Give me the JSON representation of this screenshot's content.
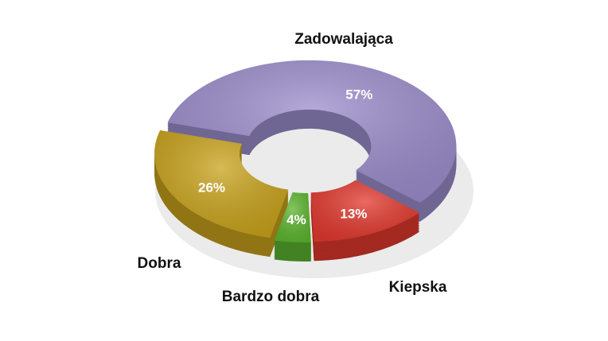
{
  "chart_data": {
    "type": "donut",
    "categories": [
      "Zadowalająca",
      "Kiepska",
      "Bardzo dobra",
      "Dobra"
    ],
    "values": [
      57,
      13,
      4,
      26
    ],
    "value_labels": [
      "57%",
      "13%",
      "4%",
      "26%"
    ],
    "colors": [
      "#9c8dcc",
      "#e2392e",
      "#5db52f",
      "#c9a31c"
    ]
  }
}
